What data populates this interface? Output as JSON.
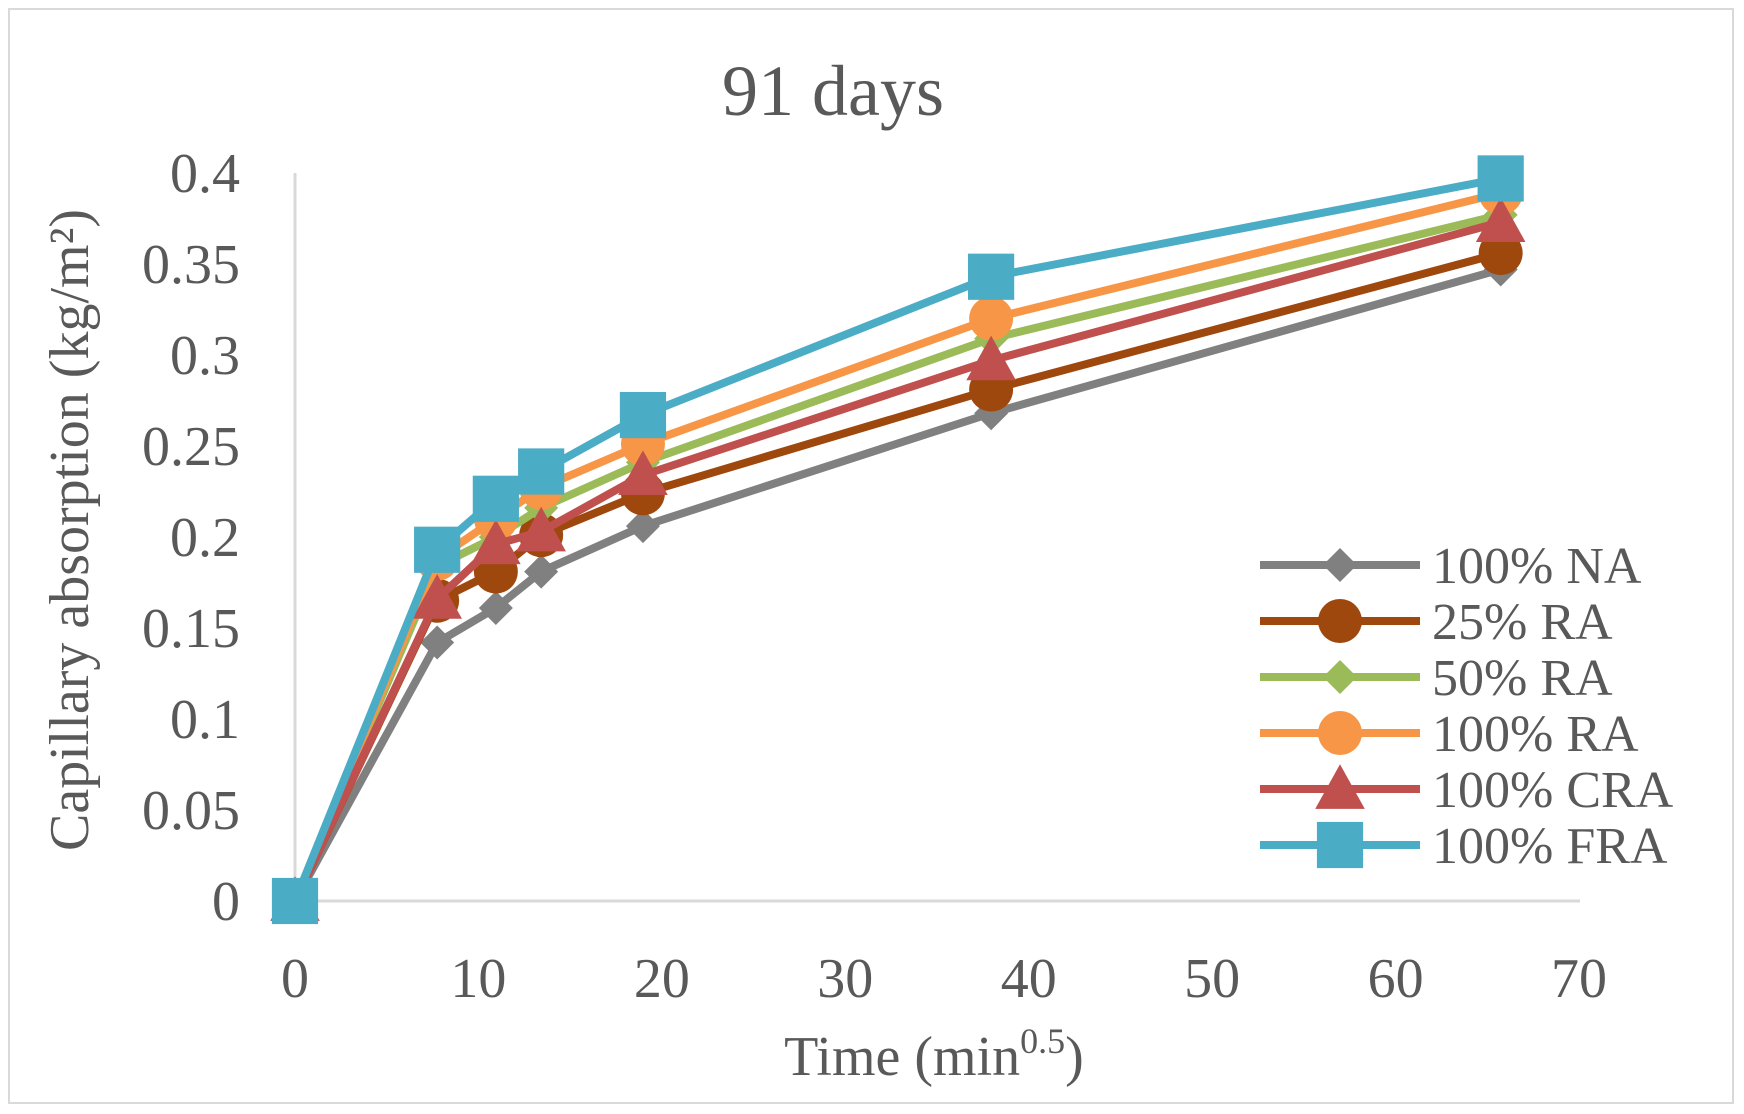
{
  "chart_data": {
    "type": "line",
    "title": "91 days",
    "xlabel": "Time (min",
    "xlabel_sup": "0.5",
    "xlabel_close": ")",
    "ylabel": "Capillary absorption (kg/m²)",
    "xlim": [
      0,
      70
    ],
    "ylim": [
      0,
      0.4
    ],
    "x_ticks": [
      0,
      10,
      20,
      30,
      40,
      50,
      60,
      70
    ],
    "y_ticks": [
      "0",
      "0.05",
      "0.1",
      "0.15",
      "0.2",
      "0.25",
      "0.3",
      "0.35",
      "0.4"
    ],
    "y_tick_values": [
      0,
      0.05,
      0.1,
      0.15,
      0.2,
      0.25,
      0.3,
      0.35,
      0.4
    ],
    "grid": false,
    "legend_position": "right",
    "x": [
      0,
      7.75,
      10.95,
      13.42,
      18.97,
      37.95,
      65.73
    ],
    "series": [
      {
        "name": "100% NA",
        "color": "#808080",
        "marker": "diamond",
        "values": [
          0,
          0.142,
          0.161,
          0.181,
          0.206,
          0.268,
          0.347
        ]
      },
      {
        "name": "25% RA",
        "color": "#9e480e",
        "marker": "circle",
        "values": [
          0,
          0.165,
          0.181,
          0.201,
          0.224,
          0.281,
          0.356
        ]
      },
      {
        "name": "50% RA",
        "color": "#9bbb59",
        "marker": "diamond",
        "values": [
          0,
          0.184,
          0.2,
          0.216,
          0.241,
          0.309,
          0.377
        ]
      },
      {
        "name": "100% RA",
        "color": "#f79646",
        "marker": "circle",
        "values": [
          0,
          0.188,
          0.21,
          0.227,
          0.251,
          0.32,
          0.389
        ]
      },
      {
        "name": "100% CRA",
        "color": "#c0504d",
        "marker": "triangle",
        "values": [
          0,
          0.166,
          0.196,
          0.203,
          0.234,
          0.297,
          0.373
        ]
      },
      {
        "name": "100% FRA",
        "color": "#4bacc6",
        "marker": "square",
        "values": [
          0,
          0.193,
          0.221,
          0.236,
          0.267,
          0.343,
          0.397
        ]
      }
    ]
  }
}
